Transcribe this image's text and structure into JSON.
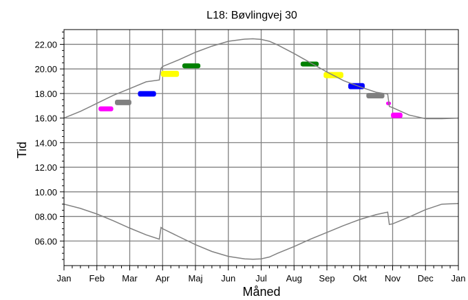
{
  "chart_data": {
    "type": "line",
    "title": "L18: Bøvlingvej 30",
    "xlabel": "Måned",
    "ylabel": "Tid",
    "x_ticks": [
      "Jan",
      "Feb",
      "Mar",
      "Apr",
      "Maj",
      "Jun",
      "Jul",
      "Aug",
      "Sep",
      "Okt",
      "Nov",
      "Dec",
      "Jan"
    ],
    "y_ticks": [
      "06.00",
      "08.00",
      "10.00",
      "12.00",
      "14.00",
      "16.00",
      "18.00",
      "20.00",
      "22.00"
    ],
    "xlim": [
      0,
      12
    ],
    "ylim": [
      4,
      23.2
    ],
    "grid": true,
    "legend": "none",
    "colors": {
      "curve": "#808080",
      "grid": "#808080",
      "magenta": "#ff00ff",
      "gray": "#808080",
      "blue": "#0000ff",
      "yellow": "#ffff00",
      "green": "#008000"
    },
    "sunset": {
      "x": [
        0.0,
        0.5,
        1.0,
        1.5,
        2.0,
        2.5,
        2.9,
        2.95,
        3.0,
        3.5,
        4.0,
        4.5,
        5.0,
        5.5,
        5.75,
        6.0,
        6.25,
        6.5,
        7.0,
        7.5,
        8.0,
        8.5,
        9.0,
        9.5,
        9.85,
        9.9,
        10.0,
        10.5,
        11.0,
        11.5,
        12.0
      ],
      "y": [
        16.0,
        16.55,
        17.2,
        17.85,
        18.4,
        18.95,
        19.1,
        20.05,
        20.2,
        20.75,
        21.35,
        21.85,
        22.25,
        22.42,
        22.45,
        22.4,
        22.25,
        21.95,
        21.25,
        20.5,
        19.75,
        19.05,
        18.55,
        18.1,
        17.95,
        16.95,
        16.85,
        16.25,
        15.95,
        15.95,
        16.0
      ]
    },
    "sunrise": {
      "x": [
        0.0,
        0.5,
        1.0,
        1.5,
        2.0,
        2.5,
        2.9,
        2.95,
        3.0,
        3.5,
        4.0,
        4.5,
        5.0,
        5.5,
        5.75,
        6.0,
        6.25,
        6.5,
        7.0,
        7.5,
        8.0,
        8.5,
        9.0,
        9.5,
        9.85,
        9.9,
        10.0,
        10.5,
        11.0,
        11.5,
        12.0
      ],
      "y": [
        9.0,
        8.65,
        8.2,
        7.65,
        7.05,
        6.5,
        6.15,
        7.1,
        7.0,
        6.35,
        5.7,
        5.15,
        4.75,
        4.55,
        4.52,
        4.55,
        4.7,
        5.0,
        5.55,
        6.15,
        6.7,
        7.25,
        7.75,
        8.15,
        8.35,
        7.35,
        7.4,
        7.95,
        8.55,
        9.0,
        9.05
      ]
    },
    "shadow_periods": [
      {
        "color": "magenta",
        "x_start": 1.05,
        "x_end": 1.5,
        "y_start": 16.55,
        "y_end": 16.95
      },
      {
        "color": "gray",
        "x_start": 1.55,
        "x_end": 2.05,
        "y_start": 17.05,
        "y_end": 17.5
      },
      {
        "color": "blue",
        "x_start": 2.25,
        "x_end": 2.8,
        "y_start": 17.75,
        "y_end": 18.2
      },
      {
        "color": "yellow",
        "x_start": 2.95,
        "x_end": 3.5,
        "y_start": 19.35,
        "y_end": 19.85
      },
      {
        "color": "green",
        "x_start": 3.6,
        "x_end": 4.15,
        "y_start": 20.05,
        "y_end": 20.45
      },
      {
        "color": "green",
        "x_start": 7.2,
        "x_end": 7.75,
        "y_start": 20.2,
        "y_end": 20.6
      },
      {
        "color": "yellow",
        "x_start": 7.9,
        "x_end": 8.5,
        "y_start": 19.25,
        "y_end": 19.75
      },
      {
        "color": "blue",
        "x_start": 8.65,
        "x_end": 9.15,
        "y_start": 18.35,
        "y_end": 18.85
      },
      {
        "color": "gray",
        "x_start": 9.2,
        "x_end": 9.75,
        "y_start": 17.6,
        "y_end": 18.05
      },
      {
        "color": "magenta",
        "x_start": 9.8,
        "x_end": 9.95,
        "y_start": 17.05,
        "y_end": 17.35
      },
      {
        "color": "magenta",
        "x_start": 9.95,
        "x_end": 10.3,
        "y_start": 16.0,
        "y_end": 16.45
      }
    ]
  }
}
